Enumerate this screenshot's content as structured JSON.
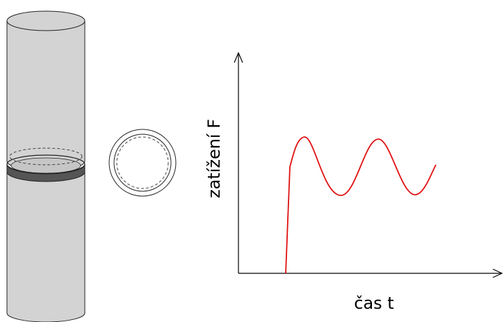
{
  "colors": {
    "cylinder_fill": "#d3d3d3",
    "cylinder_stroke": "#222222",
    "weld_band": "#555555",
    "curve": "#e01010",
    "axis": "#000000"
  },
  "graph": {
    "y_label": "zatížení F",
    "x_label": "čas t"
  },
  "chart_data": {
    "type": "line",
    "xlabel": "čas t",
    "ylabel": "zatížení F"
  }
}
